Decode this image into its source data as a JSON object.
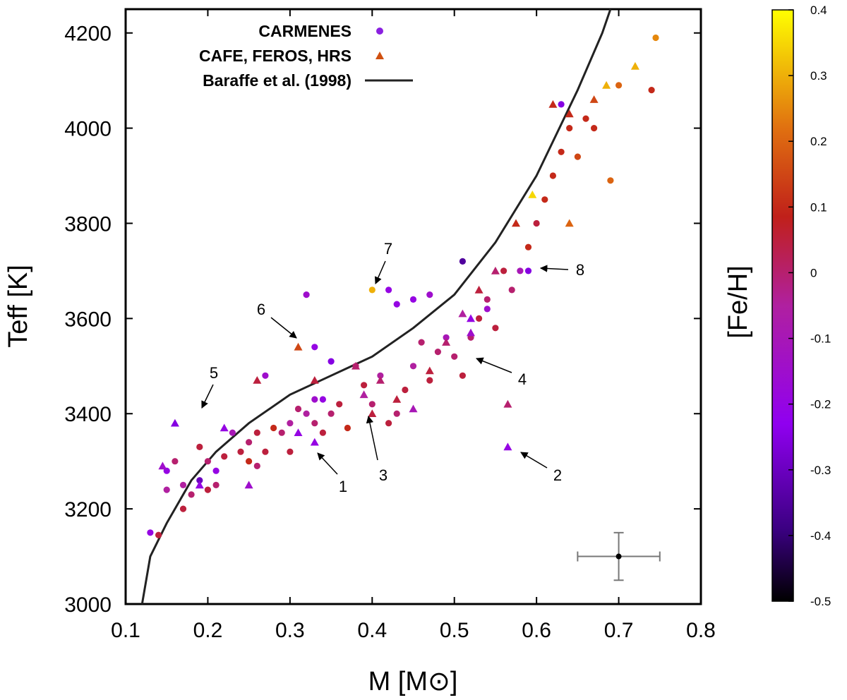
{
  "chart_data": {
    "type": "scatter",
    "xlabel": "M [M⊙]",
    "ylabel": "Teff [K]",
    "colorbar_label": "[Fe/H]",
    "xlim": [
      0.1,
      0.8
    ],
    "ylim": [
      3000,
      4250
    ],
    "xticks": [
      "0.1",
      "0.2",
      "0.3",
      "0.4",
      "0.5",
      "0.6",
      "0.7",
      "0.8"
    ],
    "yticks": [
      "3000",
      "3200",
      "3400",
      "3600",
      "3800",
      "4000",
      "4200"
    ],
    "colorbar_range": [
      -0.5,
      0.4
    ],
    "colorbar_ticks": [
      "0.4",
      "0.3",
      "0.2",
      "0.1",
      "0",
      "-0.1",
      "-0.2",
      "-0.3",
      "-0.4",
      "-0.5"
    ],
    "legend": [
      {
        "label": "CARMENES",
        "marker": "circle"
      },
      {
        "label": "CAFE, FEROS, HRS",
        "marker": "triangle"
      },
      {
        "label": "Baraffe et al. (1998)",
        "marker": "line"
      }
    ],
    "model_curve": {
      "name": "Baraffe et al. (1998)",
      "points": [
        [
          0.12,
          3000
        ],
        [
          0.13,
          3100
        ],
        [
          0.15,
          3170
        ],
        [
          0.18,
          3260
        ],
        [
          0.21,
          3320
        ],
        [
          0.25,
          3380
        ],
        [
          0.3,
          3440
        ],
        [
          0.35,
          3480
        ],
        [
          0.4,
          3520
        ],
        [
          0.45,
          3580
        ],
        [
          0.5,
          3650
        ],
        [
          0.55,
          3760
        ],
        [
          0.6,
          3900
        ],
        [
          0.65,
          4080
        ],
        [
          0.68,
          4200
        ],
        [
          0.69,
          4250
        ]
      ]
    },
    "series": [
      {
        "name": "CARMENES",
        "marker": "circle",
        "points": [
          [
            0.13,
            3150,
            -0.2
          ],
          [
            0.14,
            3145,
            0.05
          ],
          [
            0.15,
            3240,
            -0.05
          ],
          [
            0.15,
            3280,
            -0.2
          ],
          [
            0.16,
            3300,
            0.0
          ],
          [
            0.17,
            3250,
            -0.05
          ],
          [
            0.17,
            3200,
            0.05
          ],
          [
            0.18,
            3230,
            0.0
          ],
          [
            0.19,
            3260,
            -0.3
          ],
          [
            0.19,
            3330,
            0.05
          ],
          [
            0.2,
            3240,
            0.05
          ],
          [
            0.2,
            3300,
            0.0
          ],
          [
            0.21,
            3250,
            0.0
          ],
          [
            0.21,
            3280,
            -0.2
          ],
          [
            0.22,
            3310,
            0.05
          ],
          [
            0.23,
            3360,
            -0.1
          ],
          [
            0.24,
            3320,
            0.05
          ],
          [
            0.25,
            3340,
            0.0
          ],
          [
            0.25,
            3300,
            0.1
          ],
          [
            0.26,
            3360,
            0.05
          ],
          [
            0.26,
            3290,
            0.0
          ],
          [
            0.27,
            3320,
            0.05
          ],
          [
            0.28,
            3370,
            0.1
          ],
          [
            0.29,
            3360,
            0.0
          ],
          [
            0.3,
            3320,
            0.05
          ],
          [
            0.3,
            3380,
            -0.05
          ],
          [
            0.31,
            3410,
            0.0
          ],
          [
            0.32,
            3400,
            -0.05
          ],
          [
            0.33,
            3380,
            0.0
          ],
          [
            0.34,
            3430,
            -0.2
          ],
          [
            0.34,
            3360,
            0.05
          ],
          [
            0.35,
            3400,
            0.0
          ],
          [
            0.36,
            3420,
            0.05
          ],
          [
            0.37,
            3370,
            0.1
          ],
          [
            0.38,
            3500,
            0.0
          ],
          [
            0.39,
            3460,
            0.05
          ],
          [
            0.4,
            3420,
            0.0
          ],
          [
            0.41,
            3480,
            -0.05
          ],
          [
            0.42,
            3380,
            0.05
          ],
          [
            0.43,
            3400,
            0.0
          ],
          [
            0.44,
            3450,
            0.05
          ],
          [
            0.45,
            3500,
            -0.05
          ],
          [
            0.46,
            3550,
            0.0
          ],
          [
            0.47,
            3470,
            0.05
          ],
          [
            0.48,
            3530,
            0.0
          ],
          [
            0.49,
            3560,
            -0.1
          ],
          [
            0.5,
            3520,
            0.0
          ],
          [
            0.51,
            3480,
            0.05
          ],
          [
            0.52,
            3560,
            0.0
          ],
          [
            0.53,
            3600,
            0.05
          ],
          [
            0.54,
            3640,
            0.0
          ],
          [
            0.55,
            3580,
            0.05
          ],
          [
            0.56,
            3700,
            0.05
          ],
          [
            0.57,
            3660,
            0.0
          ],
          [
            0.58,
            3700,
            -0.1
          ],
          [
            0.59,
            3750,
            0.1
          ],
          [
            0.6,
            3800,
            0.05
          ],
          [
            0.61,
            3850,
            0.1
          ],
          [
            0.62,
            3900,
            0.1
          ],
          [
            0.63,
            3950,
            0.1
          ],
          [
            0.64,
            4000,
            0.1
          ],
          [
            0.65,
            3940,
            0.15
          ],
          [
            0.66,
            4020,
            0.1
          ],
          [
            0.67,
            4000,
            0.1
          ],
          [
            0.69,
            3890,
            0.2
          ],
          [
            0.7,
            4090,
            0.2
          ],
          [
            0.74,
            4080,
            0.1
          ],
          [
            0.745,
            4190,
            0.25
          ],
          [
            0.32,
            3650,
            -0.15
          ],
          [
            0.33,
            3540,
            -0.2
          ],
          [
            0.35,
            3510,
            -0.25
          ],
          [
            0.33,
            3430,
            -0.15
          ],
          [
            0.27,
            3480,
            -0.15
          ],
          [
            0.43,
            3630,
            -0.2
          ],
          [
            0.47,
            3650,
            -0.15
          ],
          [
            0.51,
            3720,
            -0.35
          ],
          [
            0.42,
            3660,
            -0.2
          ],
          [
            0.4,
            3660,
            0.3
          ],
          [
            0.59,
            3700,
            -0.25
          ],
          [
            0.63,
            4050,
            -0.25
          ],
          [
            0.54,
            3620,
            -0.15
          ],
          [
            0.45,
            3640,
            -0.2
          ]
        ]
      },
      {
        "name": "CAFE, FEROS, HRS",
        "marker": "triangle",
        "points": [
          [
            0.145,
            3290,
            -0.15
          ],
          [
            0.16,
            3380,
            -0.25
          ],
          [
            0.19,
            3250,
            -0.2
          ],
          [
            0.22,
            3370,
            -0.2
          ],
          [
            0.25,
            3250,
            -0.15
          ],
          [
            0.26,
            3470,
            0.05
          ],
          [
            0.31,
            3360,
            -0.2
          ],
          [
            0.33,
            3340,
            -0.2
          ],
          [
            0.31,
            3540,
            0.15
          ],
          [
            0.33,
            3470,
            0.05
          ],
          [
            0.38,
            3500,
            0.0
          ],
          [
            0.39,
            3440,
            -0.05
          ],
          [
            0.4,
            3400,
            0.05
          ],
          [
            0.41,
            3470,
            0.0
          ],
          [
            0.43,
            3430,
            0.05
          ],
          [
            0.45,
            3410,
            -0.1
          ],
          [
            0.47,
            3490,
            0.05
          ],
          [
            0.49,
            3550,
            0.0
          ],
          [
            0.51,
            3610,
            -0.05
          ],
          [
            0.52,
            3600,
            -0.2
          ],
          [
            0.52,
            3570,
            -0.15
          ],
          [
            0.53,
            3660,
            0.05
          ],
          [
            0.55,
            3700,
            0.0
          ],
          [
            0.565,
            3330,
            -0.2
          ],
          [
            0.565,
            3420,
            0.0
          ],
          [
            0.575,
            3800,
            0.1
          ],
          [
            0.595,
            3860,
            0.35
          ],
          [
            0.62,
            4050,
            0.1
          ],
          [
            0.64,
            4030,
            0.1
          ],
          [
            0.67,
            4060,
            0.15
          ],
          [
            0.685,
            4090,
            0.3
          ],
          [
            0.72,
            4130,
            0.3
          ],
          [
            0.64,
            3800,
            0.2
          ]
        ]
      }
    ],
    "annotations": [
      "1",
      "2",
      "3",
      "4",
      "5",
      "6",
      "7",
      "8"
    ],
    "error_bar": {
      "x": 0.7,
      "y": 3100,
      "xerr": 0.05,
      "yerr": 50
    }
  }
}
